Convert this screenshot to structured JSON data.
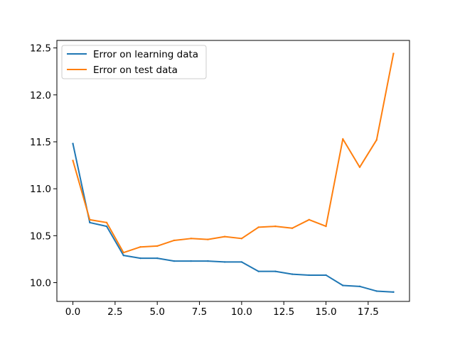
{
  "chart_data": {
    "type": "line",
    "title": "",
    "xlabel": "",
    "ylabel": "",
    "xlim": [
      -0.95,
      19.95
    ],
    "ylim": [
      9.8,
      12.58
    ],
    "x_ticks": [
      0.0,
      2.5,
      5.0,
      7.5,
      10.0,
      12.5,
      15.0,
      17.5
    ],
    "x_tick_labels": [
      "0.0",
      "2.5",
      "5.0",
      "7.5",
      "10.0",
      "12.5",
      "15.0",
      "17.5"
    ],
    "y_ticks": [
      10.0,
      10.5,
      11.0,
      11.5,
      12.0,
      12.5
    ],
    "y_tick_labels": [
      "10.0",
      "10.5",
      "11.0",
      "11.5",
      "12.0",
      "12.5"
    ],
    "grid": false,
    "legend_position": "top-left",
    "x": [
      0,
      1,
      2,
      3,
      4,
      5,
      6,
      7,
      8,
      9,
      10,
      11,
      12,
      13,
      14,
      15,
      16,
      17,
      18,
      19
    ],
    "series": [
      {
        "name": "Error on learning data",
        "color": "#1f77b4",
        "values": [
          11.48,
          10.64,
          10.6,
          10.29,
          10.26,
          10.26,
          10.23,
          10.23,
          10.23,
          10.22,
          10.22,
          10.12,
          10.12,
          10.09,
          10.08,
          10.08,
          9.97,
          9.96,
          9.91,
          9.9
        ]
      },
      {
        "name": "Error on test data",
        "color": "#ff7f0e",
        "values": [
          11.3,
          10.67,
          10.64,
          10.32,
          10.38,
          10.39,
          10.45,
          10.47,
          10.46,
          10.49,
          10.47,
          10.59,
          10.6,
          10.58,
          10.67,
          10.6,
          11.53,
          11.23,
          11.52,
          12.44
        ]
      }
    ]
  }
}
